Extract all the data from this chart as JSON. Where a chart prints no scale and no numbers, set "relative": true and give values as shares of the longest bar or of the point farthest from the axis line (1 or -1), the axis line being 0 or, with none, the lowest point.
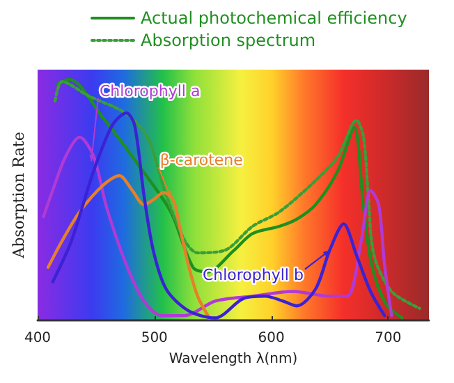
{
  "chart_data": {
    "type": "line",
    "relative": true,
    "xlabel": "Wavelength λ(nm)",
    "ylabel": "Absorption Rate",
    "xlim": [
      400,
      735
    ],
    "xticks": [
      400,
      500,
      600,
      700
    ],
    "legend": "top",
    "grid": false,
    "marker": "none",
    "series": [
      {
        "name": "Actual photochemical efficiency",
        "color": "#1f8f1f",
        "line_style": "solid",
        "x": [
          417,
          427,
          456,
          487,
          514,
          533,
          545,
          568,
          584,
          607,
          622,
          638,
          657,
          671,
          679,
          686,
          698,
          712
        ],
        "values": [
          0.98,
          1.0,
          0.84,
          0.64,
          0.45,
          0.22,
          0.2,
          0.29,
          0.36,
          0.39,
          0.42,
          0.48,
          0.62,
          0.8,
          0.47,
          0.23,
          0.07,
          0.01
        ]
      },
      {
        "name": "Absorption spectrum",
        "color": "#3a9e3a",
        "line_style": "dotted",
        "x": [
          415,
          421,
          444,
          475,
          494,
          510,
          526,
          537,
          560,
          584,
          607,
          638,
          657,
          673,
          679,
          683,
          688,
          703,
          727
        ],
        "values": [
          0.91,
          0.99,
          0.93,
          0.86,
          0.76,
          0.52,
          0.33,
          0.28,
          0.29,
          0.39,
          0.45,
          0.58,
          0.68,
          0.83,
          0.76,
          0.52,
          0.27,
          0.12,
          0.05
        ]
      },
      {
        "color": "#b03ad6",
        "line_style": "solid",
        "x": [
          405,
          413,
          424,
          436,
          448,
          459,
          476,
          491,
          506,
          526,
          552,
          584,
          619,
          650,
          665,
          677,
          685,
          692,
          697,
          703
        ],
        "values": [
          0.43,
          0.54,
          0.68,
          0.76,
          0.68,
          0.47,
          0.23,
          0.08,
          0.02,
          0.02,
          0.08,
          0.1,
          0.12,
          0.1,
          0.1,
          0.33,
          0.54,
          0.48,
          0.23,
          0.02
        ]
      },
      {
        "color": "#e6802a",
        "line_style": "solid",
        "x": [
          409,
          421,
          436,
          456,
          470,
          481,
          491,
          499,
          508,
          516,
          522,
          529,
          537,
          547
        ],
        "values": [
          0.22,
          0.33,
          0.45,
          0.56,
          0.6,
          0.54,
          0.48,
          0.5,
          0.53,
          0.5,
          0.38,
          0.23,
          0.1,
          0.01
        ]
      },
      {
        "color": "#3b22d4",
        "line_style": "solid",
        "x": [
          413,
          429,
          448,
          464,
          476,
          483,
          491,
          499,
          510,
          529,
          552,
          576,
          595,
          610,
          622,
          638,
          650,
          662,
          673,
          685,
          697
        ],
        "values": [
          0.16,
          0.33,
          0.62,
          0.81,
          0.86,
          0.81,
          0.52,
          0.29,
          0.13,
          0.04,
          0.01,
          0.09,
          0.1,
          0.08,
          0.06,
          0.13,
          0.29,
          0.4,
          0.27,
          0.12,
          0.02
        ]
      }
    ],
    "annotations": [
      {
        "text": "Chlorophyll a",
        "x": 446,
        "y": 0.66
      },
      {
        "text": "β-carotene",
        "x": 514,
        "y": 0.51
      },
      {
        "text": "Chlorophyll b",
        "x": 650,
        "y": 0.29
      }
    ]
  }
}
